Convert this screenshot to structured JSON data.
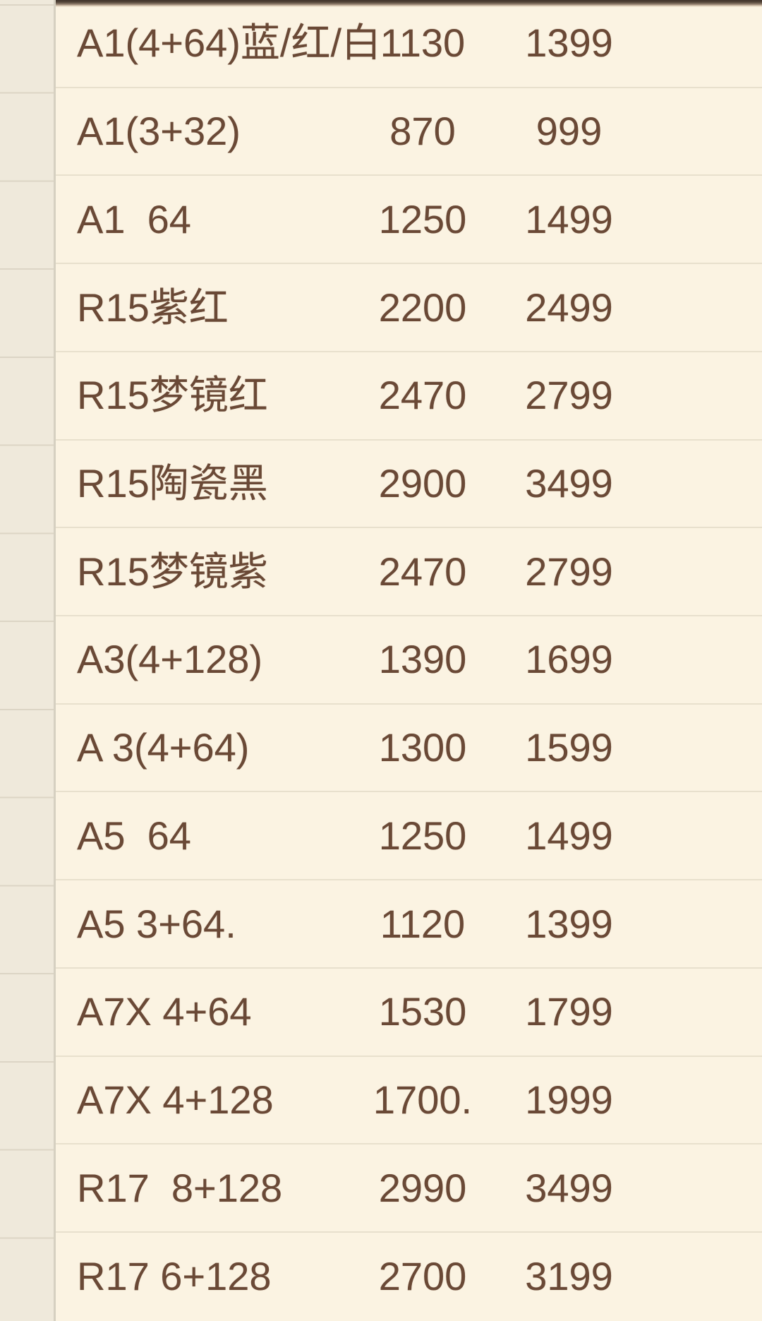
{
  "theme": {
    "background_main": "#fbf3e2",
    "background_rail": "#efe9db",
    "gridline_main": "#e8e0cd",
    "gridline_rail": "#dcd5c5",
    "pane_divider": "#d6d0c1",
    "text_color": "#6a4936",
    "top_edge_dark": "#3f332b"
  },
  "table": {
    "columns": [
      "model",
      "price",
      "list_price"
    ],
    "rows": [
      {
        "model": "A1(4+64)蓝/红/白",
        "price": "1130",
        "list_price": "1399"
      },
      {
        "model": "A1(3+32)",
        "price": "870",
        "list_price": "999"
      },
      {
        "model": "A1  64",
        "price": "1250",
        "list_price": "1499"
      },
      {
        "model": "R15紫红",
        "price": "2200",
        "list_price": "2499"
      },
      {
        "model": "R15梦镜红",
        "price": "2470",
        "list_price": "2799"
      },
      {
        "model": "R15陶瓷黑",
        "price": "2900",
        "list_price": "3499"
      },
      {
        "model": "R15梦镜紫",
        "price": "2470",
        "list_price": "2799"
      },
      {
        "model": "A3(4+128)",
        "price": "1390",
        "list_price": "1699"
      },
      {
        "model": "A 3(4+64)",
        "price": "1300",
        "list_price": "1599"
      },
      {
        "model": "A5  64",
        "price": "1250",
        "list_price": "1499"
      },
      {
        "model": "A5 3+64.",
        "price": "1120",
        "list_price": "1399"
      },
      {
        "model": "A7X 4+64",
        "price": "1530",
        "list_price": "1799"
      },
      {
        "model": "A7X 4+128",
        "price": "1700.",
        "list_price": "1999"
      },
      {
        "model": "R17  8+128",
        "price": "2990",
        "list_price": "3499"
      },
      {
        "model": "R17 6+128",
        "price": "2700",
        "list_price": "3199"
      }
    ]
  }
}
